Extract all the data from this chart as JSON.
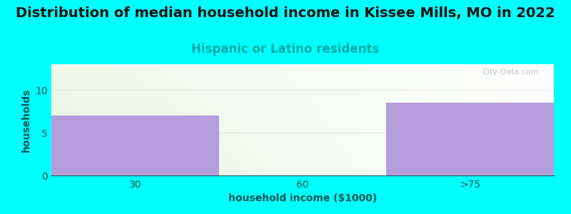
{
  "title": "Distribution of median household income in Kissee Mills, MO in 2022",
  "subtitle": "Hispanic or Latino residents",
  "xlabel": "household income ($1000)",
  "ylabel": "households",
  "categories": [
    "30",
    "60",
    ">75"
  ],
  "values": [
    7,
    0,
    8.5
  ],
  "bar_color": "#b39ddb",
  "background_color": "#00ffff",
  "ylim": [
    0,
    13
  ],
  "yticks": [
    0,
    5,
    10
  ],
  "title_fontsize": 14,
  "subtitle_fontsize": 12,
  "subtitle_color": "#00aaaa",
  "axis_label_color": "#005555",
  "tick_color": "#005555",
  "watermark": "City-Data.com",
  "grid_color": "#e8e8e8"
}
